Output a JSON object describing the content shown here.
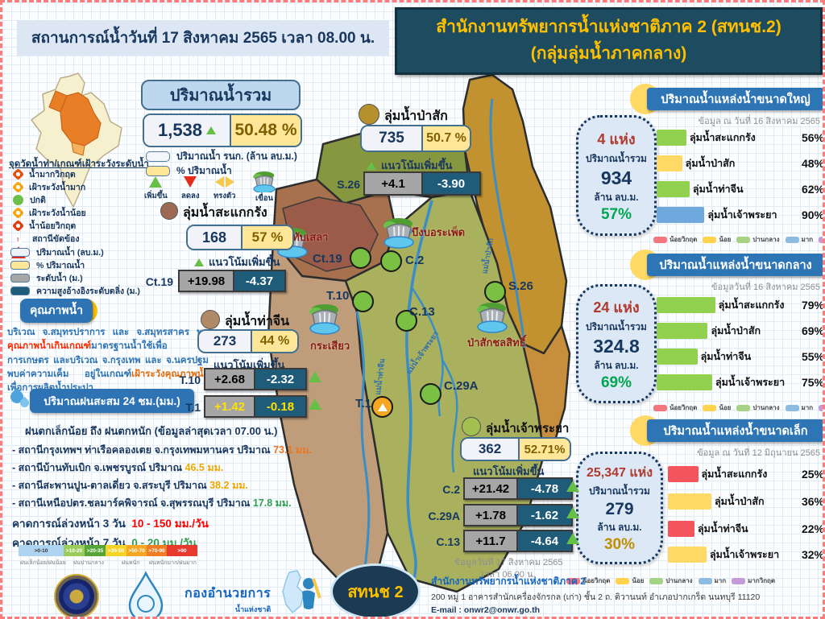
{
  "header": {
    "date_banner": "สถานการณ์น้ำวันที่  17 สิงหาคม 2565 เวลา 08.00 น.",
    "org_title_line1": "สำนักงานทรัพยากรน้ำแห่งชาติภาค 2 (สทนช.2)",
    "org_title_line2": "(กลุ่มลุ่มน้ำภาคกลาง)",
    "title_color": "#ffc000"
  },
  "station_legend": {
    "title": "จุดวัดน้ำท่า/เกณฑ์เฝ้าระวังระดับน้ำ",
    "items": [
      {
        "label": "น้ำมากวิกฤต",
        "shape": "diamond",
        "color": "#e8500d"
      },
      {
        "label": "เฝ้าระวังน้ำมาก",
        "shape": "diamond",
        "color": "#f8a50c"
      },
      {
        "label": "ปกติ",
        "shape": "circle",
        "color": "#6cc049"
      },
      {
        "label": "เฝ้าระวังน้ำน้อย",
        "shape": "diamond",
        "color": "#f8a50c"
      },
      {
        "label": "น้ำน้อยวิกฤต",
        "shape": "diamond",
        "color": "#e33d0c"
      },
      {
        "label": "สถานีขัดข้อง",
        "shape": "warning",
        "color": "#e02b2b"
      },
      {
        "label": "ปริมาณน้ำ (ลบ.ม.)",
        "shape": "rect",
        "color": "#eef3fb"
      },
      {
        "label": "% ปริมาณน้ำ",
        "shape": "rect",
        "color": "#ffe699"
      },
      {
        "label": "ระดับน้ำ (ม.)",
        "shape": "rect",
        "color": "#a6a6a6"
      },
      {
        "label": "ความสูงอ้างอิงระดับตลิ่ง (ม.)",
        "shape": "rect",
        "color": "#1f5c7a"
      }
    ]
  },
  "water_quality": {
    "button_label": "คุณภาพน้ำ",
    "segments": [
      {
        "text": "บริเวณ จ.สมุทรปราการ และ จ.สมุทรสาคร พบ",
        "color": "#2e74b5"
      },
      {
        "text": "คุณภาพน้ำเกินเกณฑ์",
        "color": "#ff2a00"
      },
      {
        "text": "มาตรฐานน้ำใช้เพื่อการเกษตร และบริเวณ จ.กรุงเทพ และ จ.นครปฐม พบค่าความเค็ม อยู่ในเกณฑ์",
        "color": "#2e74b5"
      },
      {
        "text": "เฝ้าระวังคุณภาพน้ำ",
        "color": "#e36c0a"
      },
      {
        "text": "เพื่อการผลิตน้ำประปา",
        "color": "#2e74b5"
      }
    ]
  },
  "rain": {
    "banner": "ปริมาณฝนสะสม 24 ชม.(มม.)",
    "headline": "ฝนตกเล็กน้อย ถึง ฝนตกหนัก (ข้อมูลล่าสุดเวลา 07.00 น.)",
    "stations": [
      {
        "text": "- สถานีกรุงเทพฯ ท่าเรือคลองเตย จ.กรุงเทพมหานคร ปริมาณ ",
        "value": "73.1 มม.",
        "color": "#e87722"
      },
      {
        "text": "- สถานีบ้านทับเบิก จ.เพชรบูรณ์ ปริมาณ ",
        "value": "46.5 มม.",
        "color": "#f0a800"
      },
      {
        "text": "- สถานีสะพานปูน-ตาลเดี่ยว จ.สระบุรี ปริมาณ ",
        "value": "38.2 มม.",
        "color": "#f0a800"
      },
      {
        "text": "- สถานีเหนือปตร.ชลมาร์คพิจารณ์ จ.สุพรรณบุรี ปริมาณ ",
        "value": "17.8 มม.",
        "color": "#2e9e4f"
      }
    ],
    "forecast_3day": {
      "label": "คาดการณ์ล่วงหน้า 3 วัน",
      "value": "10 - 150 มม./วัน",
      "color": "#ff0000"
    },
    "forecast_7day": {
      "label": "คาดการณ์ล่วงหน้า 7 วัน",
      "value": "0 - 20 มม./วัน",
      "color": "#2e9e4f"
    },
    "scale": [
      {
        "label": ">0-10",
        "color": "#aed4f2"
      },
      {
        "label": ">10-20",
        "color": "#9ccc5c"
      },
      {
        "label": ">20-35",
        "color": "#55a636"
      },
      {
        "label": ">35-50",
        "color": "#f5d327"
      },
      {
        "label": ">50-70",
        "color": "#f5a623"
      },
      {
        "label": ">70-90",
        "color": "#ef7d22"
      },
      {
        "label": ">90",
        "color": "#e8392e"
      }
    ],
    "scale_captions": [
      "ฝนเล็กน้อย/ฝนน้อย",
      "ฝนปานกลาง",
      "ฝนหนัก",
      "ฝนหนักมาก/ฝนมาก"
    ]
  },
  "total_water": {
    "title": "ปริมาณน้ำรวม",
    "value": "1,538",
    "percent": "50.48 %",
    "legend_volume": "ปริมาณน้ำ รนก. (ล้าน ลบ.ม.)",
    "legend_percent": "% ปริมาณน้ำ",
    "trend_icons": {
      "up": "เพิ่มขึ้น",
      "down": "ลดลง",
      "stable": "ทรงตัว",
      "dam": "เขื่อน"
    }
  },
  "basins": [
    {
      "name": "ลุ่มน้ำสะแกกรัง",
      "dot_color": "#9c6a52",
      "volume": "168",
      "percent": "57 %",
      "trend": "แนวโน้มเพิ่มขึ้น",
      "stations": [
        {
          "code": "Ct.19",
          "level": "+19.98",
          "bank": "-4.37"
        }
      ]
    },
    {
      "name": "ลุ่มน้ำป่าสัก",
      "dot_color": "#b5902c",
      "volume": "735",
      "percent": "50.7 %",
      "trend": "แนวโน้มเพิ่มขึ้น",
      "stations": [
        {
          "code": "S.26",
          "level": "+4.1",
          "bank": "-3.90"
        }
      ]
    },
    {
      "name": "ลุ่มน้ำท่าจีน",
      "dot_color": "#b08a66",
      "volume": "273",
      "percent": "44 %",
      "trend": "แนวโน้มเพิ่มขึ้น",
      "stations": [
        {
          "code": "T.10",
          "level": "+2.68",
          "bank": "-2.32"
        },
        {
          "code": "T.1",
          "level": "+1.42",
          "bank": "-0.18"
        }
      ]
    },
    {
      "name": "ลุ่มน้ำเจ้าพระยา",
      "dot_color": "#a2c050",
      "volume": "362",
      "percent": "52.71%",
      "trend": "แนวโน้มเพิ่มขึ้น",
      "stations": [
        {
          "code": "C.2",
          "level": "+21.42",
          "bank": "-4.78"
        },
        {
          "code": "C.29A",
          "level": "+1.78",
          "bank": "-1.62"
        },
        {
          "code": "C.13",
          "level": "+11.7",
          "bank": "-4.64"
        }
      ],
      "note_date": "ข้อมูลวันที่ 17 สิงหาคม 2565",
      "note_time": "เวลา 06.00 น."
    }
  ],
  "map": {
    "dams": [
      {
        "name": "ทับเสลา"
      },
      {
        "name": "บึงบอระเพ็ด"
      },
      {
        "name": "กระเสียว"
      },
      {
        "name": "ป่าสักชลสิทธิ์"
      }
    ],
    "stations": [
      {
        "code": "Ct.19"
      },
      {
        "code": "C.2"
      },
      {
        "code": "S.26"
      },
      {
        "code": "T.10"
      },
      {
        "code": "C.13"
      },
      {
        "code": "C.29A"
      },
      {
        "code": "T.1"
      }
    ],
    "rivers": [
      {
        "name": "แม่น้ำท่าจีน"
      },
      {
        "name": "แม่น้ำเจ้าพระยา"
      },
      {
        "name": "แม่น้ำป่าสัก"
      }
    ],
    "normal_color": "#7ac143",
    "warn_color": "#f5a623"
  },
  "reservoir_panels": [
    {
      "title": "ปริมาณน้ำแหล่งน้ำขนาดใหญ่",
      "date": "ข้อมูล ณ วันที่ 16 สิงหาคม 2565",
      "count": "4 แห่ง",
      "total_label": "ปริมาณน้ำรวม",
      "total": "934",
      "unit": "ล้าน ลบ.ม.",
      "percent": "57%",
      "percent_color": "#00a650",
      "bars": [
        {
          "name": "ลุ่มน้ำสะแกกรัง",
          "value": "56%",
          "color": "#92d050"
        },
        {
          "name": "ลุ่มน้ำป่าสัก",
          "value": "48%",
          "color": "#ffd966"
        },
        {
          "name": "ลุ่มน้ำท่าจีน",
          "value": "62%",
          "color": "#92d050"
        },
        {
          "name": "ลุ่มน้ำเจ้าพระยา",
          "value": "90%",
          "color": "#6fa8dc"
        }
      ]
    },
    {
      "title": "ปริมาณน้ำแหล่งน้ำขนาดกลาง",
      "date": "ข้อมูลวันที่ 16 สิงหาคม  2565",
      "count": "24 แห่ง",
      "total_label": "ปริมาณน้ำรวม",
      "total": "324.8",
      "unit": "ล้าน ลบ.ม.",
      "percent": "69%",
      "percent_color": "#00a650",
      "bars": [
        {
          "name": "ลุ่มน้ำสะแกกรัง",
          "value": "79%",
          "color": "#92d050"
        },
        {
          "name": "ลุ่มน้ำป่าสัก",
          "value": "69%",
          "color": "#92d050"
        },
        {
          "name": "ลุ่มน้ำท่าจีน",
          "value": "55%",
          "color": "#92d050"
        },
        {
          "name": "ลุ่มน้ำเจ้าพระยา",
          "value": "75%",
          "color": "#92d050"
        }
      ]
    },
    {
      "title": "ปริมาณน้ำแหล่งน้ำขนาดเล็ก",
      "date": "ข้อมูล ณ วันที่ 12 มิถุนายน 2565",
      "count": "25,347 แห่ง",
      "total_label": "ปริมาณน้ำรวม",
      "total": "279",
      "unit": "ล้าน ลบ.ม.",
      "percent": "30%",
      "percent_color": "#bf8f00",
      "bars": [
        {
          "name": "ลุ่มน้ำสะแกกรัง",
          "value": "25%",
          "color": "#f4545e"
        },
        {
          "name": "ลุ่มน้ำป่าสัก",
          "value": "36%",
          "color": "#ffd966"
        },
        {
          "name": "ลุ่มน้ำท่าจีน",
          "value": "22%",
          "color": "#f4545e"
        },
        {
          "name": "ลุ่มน้ำเจ้าพระยา",
          "value": "32%",
          "color": "#ffd966"
        }
      ]
    }
  ],
  "status_legend": [
    {
      "label": "น้อยวิกฤต",
      "color": "#f4777f"
    },
    {
      "label": "น้อย",
      "color": "#ffd34d"
    },
    {
      "label": "ปานกลาง",
      "color": "#a6d284"
    },
    {
      "label": "มาก",
      "color": "#8ebbe0"
    },
    {
      "label": "มากวิกฤต",
      "color": "#c49bd8"
    }
  ],
  "footer": {
    "org": "สำนักงานทรัพยากรน้ำแห่งชาติภาค 2",
    "address": "200 หมู่ 1 อาคารสำนักเครื่องจักรกล (เก่า) ชั้น 2 ถ. ติวานนท์ อำเภอปากเกร็ด นนทบุรี 11120",
    "email": "E-mail : onwr2@onwr.go.th",
    "badge": "สทนช 2",
    "dept_logo_line1": "กองอำนวยการ",
    "dept_logo_line2": "น้ำแห่งชาติ"
  },
  "chart_data": [
    {
      "type": "bar",
      "title": "ปริมาณน้ำแหล่งน้ำขนาดใหญ่",
      "date": "ข้อมูล ณ วันที่ 16 สิงหาคม 2565",
      "categories": [
        "ลุ่มน้ำสะแกกรัง",
        "ลุ่มน้ำป่าสัก",
        "ลุ่มน้ำท่าจีน",
        "ลุ่มน้ำเจ้าพระยา"
      ],
      "values": [
        56,
        48,
        62,
        90
      ],
      "unit": "%",
      "summary": {
        "sites": 4,
        "total_mcm": 934,
        "percent": 57
      }
    },
    {
      "type": "bar",
      "title": "ปริมาณน้ำแหล่งน้ำขนาดกลาง",
      "date": "ข้อมูลวันที่ 16 สิงหาคม 2565",
      "categories": [
        "ลุ่มน้ำสะแกกรัง",
        "ลุ่มน้ำป่าสัก",
        "ลุ่มน้ำท่าจีน",
        "ลุ่มน้ำเจ้าพระยา"
      ],
      "values": [
        79,
        69,
        55,
        75
      ],
      "unit": "%",
      "summary": {
        "sites": 24,
        "total_mcm": 324.8,
        "percent": 69
      }
    },
    {
      "type": "bar",
      "title": "ปริมาณน้ำแหล่งน้ำขนาดเล็ก",
      "date": "ข้อมูล ณ วันที่ 12 มิถุนายน 2565",
      "categories": [
        "ลุ่มน้ำสะแกกรัง",
        "ลุ่มน้ำป่าสัก",
        "ลุ่มน้ำท่าจีน",
        "ลุ่มน้ำเจ้าพระยา"
      ],
      "values": [
        25,
        36,
        22,
        32
      ],
      "unit": "%",
      "summary": {
        "sites": 25347,
        "total_mcm": 279,
        "percent": 30
      }
    }
  ]
}
